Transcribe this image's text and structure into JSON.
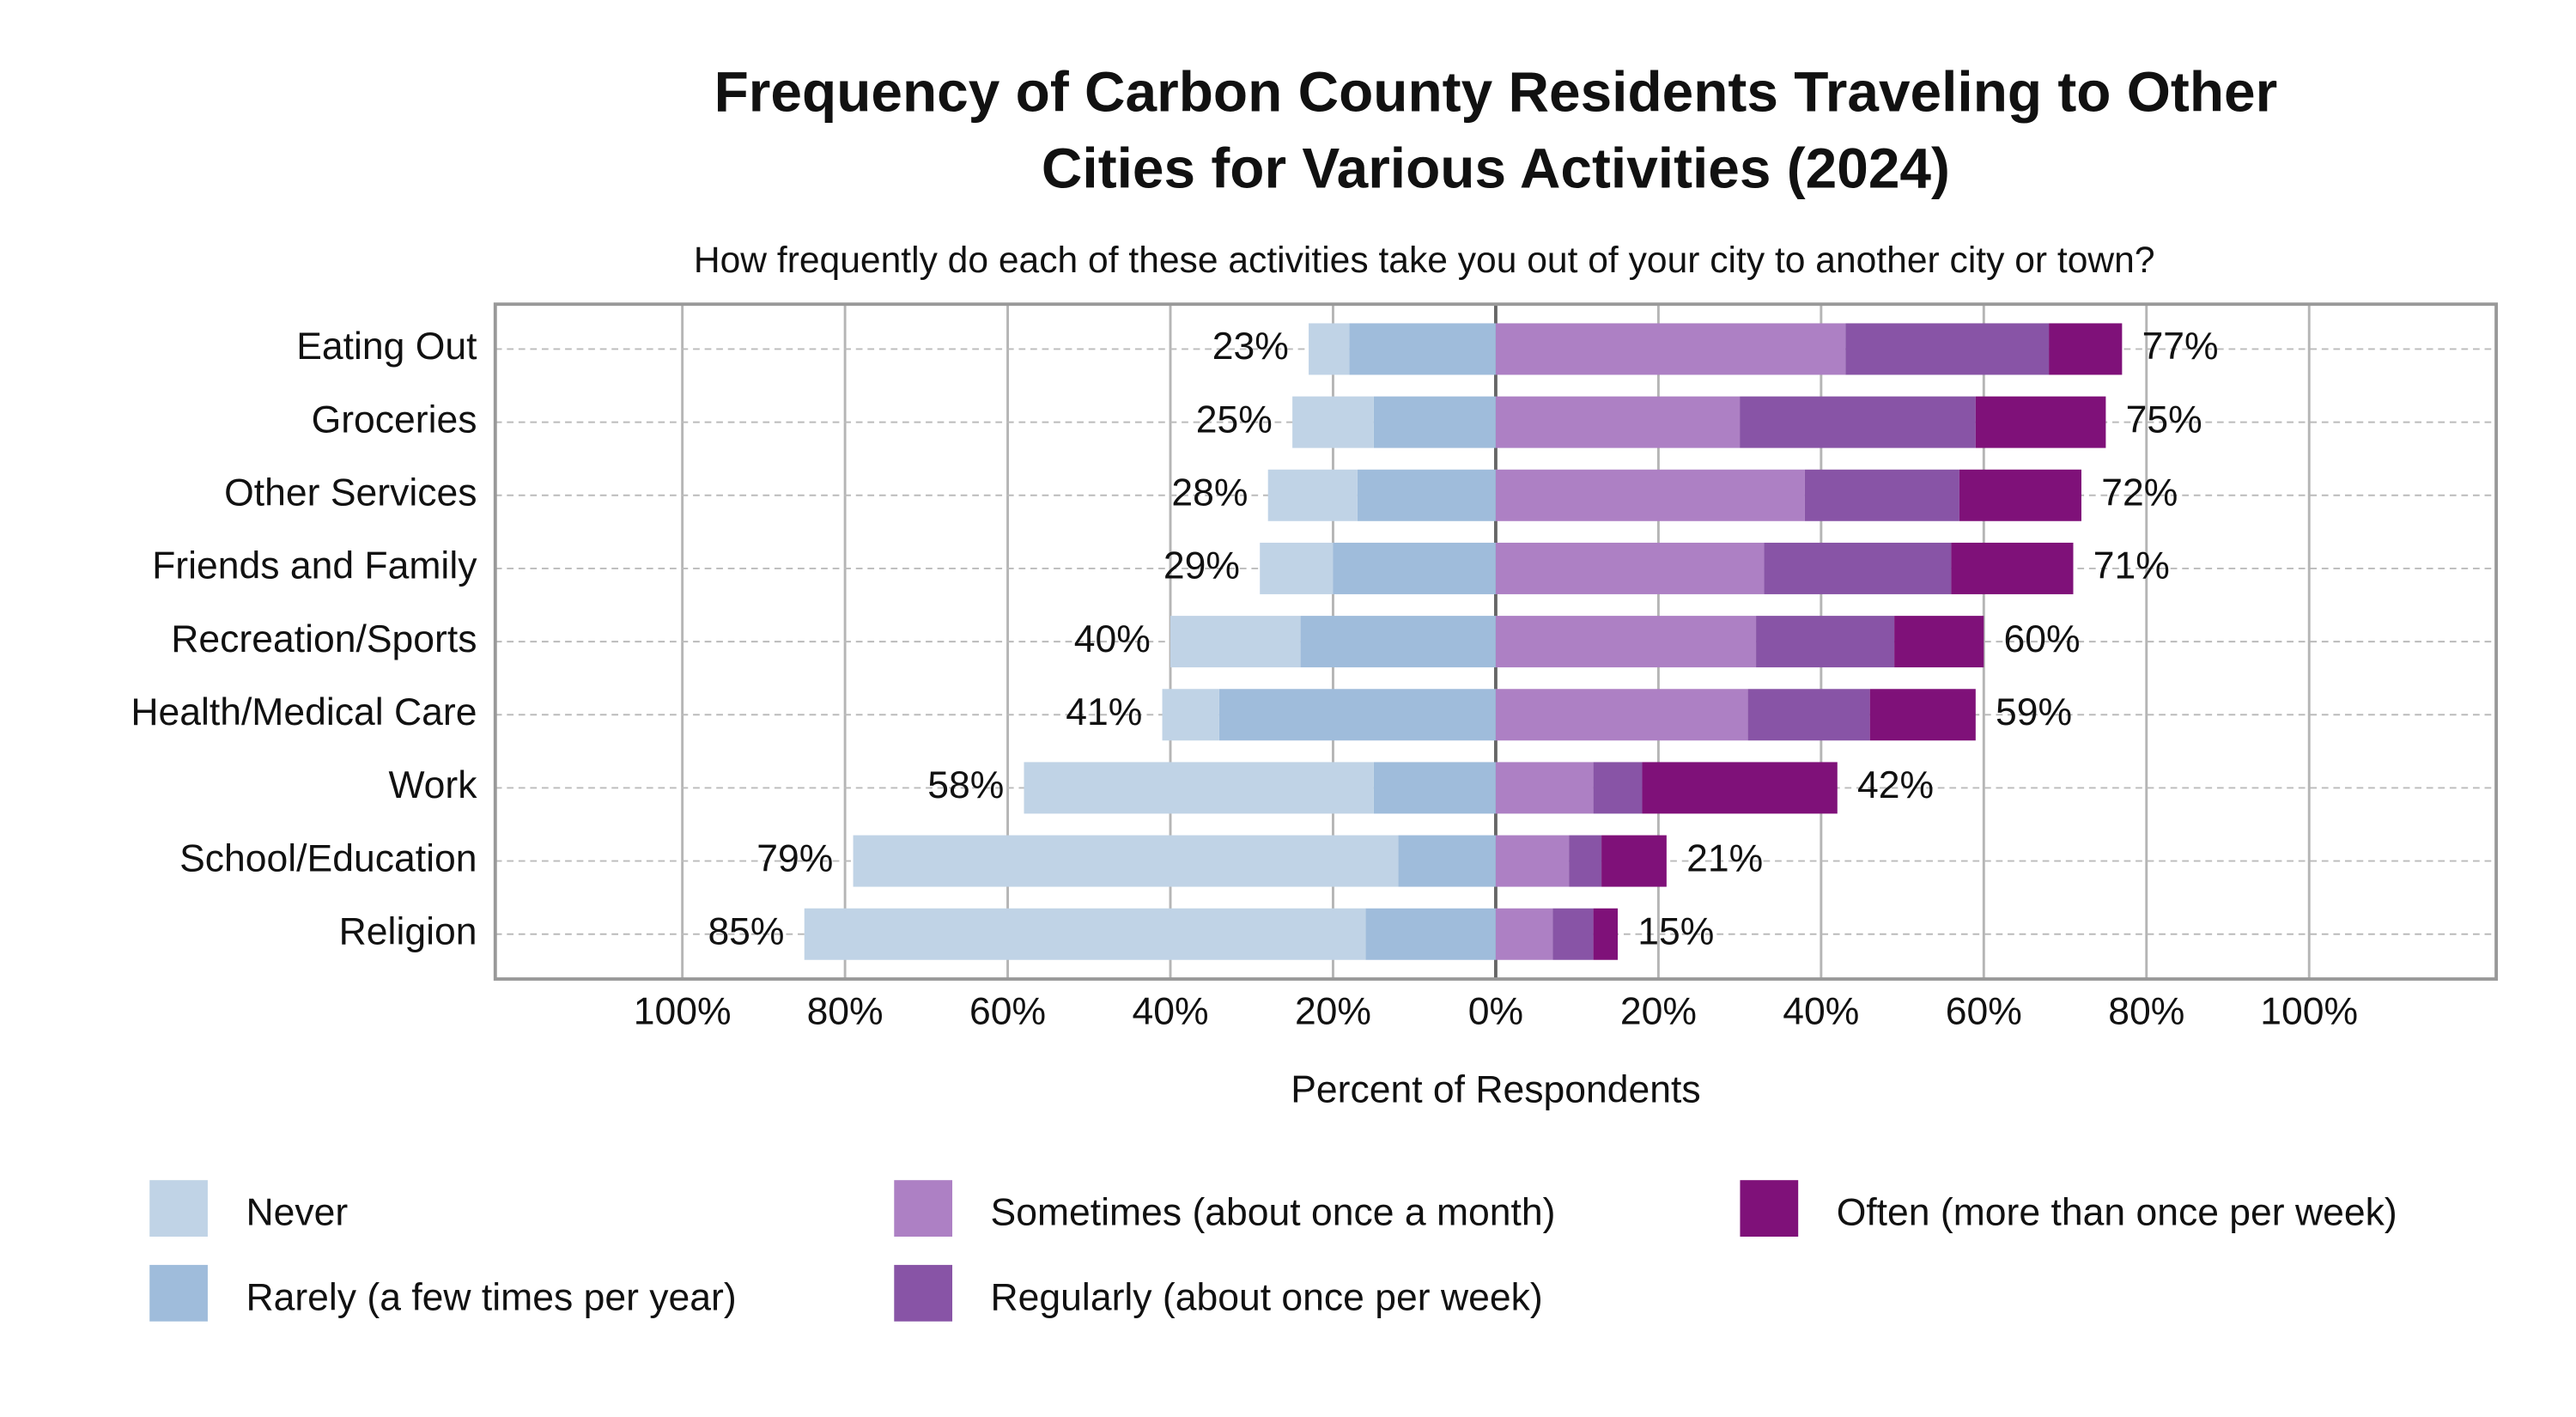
{
  "chart_data": {
    "type": "diverging-bar",
    "title": [
      "Frequency of Carbon County Residents Traveling to Other",
      "Cities for Various Activities (2024)"
    ],
    "subtitle": "How frequently do each of these activities take you out of your city to another city or town?",
    "x_label": "Percent of Respondents",
    "categories": [
      "Eating Out",
      "Groceries",
      "Other Services",
      "Friends and Family",
      "Recreation/Sports",
      "Health/Medical Care",
      "Work",
      "School/Education",
      "Religion"
    ],
    "series": [
      {
        "name": "Never",
        "color": "#c0d3e6",
        "side": "left",
        "values": [
          5,
          10,
          11,
          9,
          16,
          7,
          43,
          67,
          69
        ]
      },
      {
        "name": "Rarely (a few times per year)",
        "color": "#9fbcdb",
        "side": "left",
        "values": [
          18,
          15,
          17,
          20,
          24,
          34,
          15,
          12,
          16
        ]
      },
      {
        "name": "Sometimes (about once a month)",
        "color": "#ad80c4",
        "side": "right",
        "values": [
          43,
          30,
          38,
          33,
          32,
          31,
          12,
          9,
          7
        ]
      },
      {
        "name": "Regularly (about once per week)",
        "color": "#8854a6",
        "side": "right",
        "values": [
          25,
          29,
          19,
          23,
          17,
          15,
          6,
          4,
          5
        ]
      },
      {
        "name": "Often (more than once per week)",
        "color": "#7f1179",
        "side": "right",
        "values": [
          9,
          16,
          15,
          15,
          11,
          13,
          24,
          8,
          3
        ]
      }
    ],
    "left_totals": {
      "values": [
        23,
        25,
        28,
        29,
        40,
        41,
        58,
        79,
        85
      ],
      "value_labels": [
        "23%",
        "25%",
        "28%",
        "29%",
        "40%",
        "41%",
        "58%",
        "79%",
        "85%"
      ]
    },
    "right_totals": {
      "values": [
        77,
        75,
        72,
        71,
        60,
        59,
        42,
        21,
        15
      ],
      "value_labels": [
        "77%",
        "75%",
        "72%",
        "71%",
        "60%",
        "59%",
        "42%",
        "21%",
        "15%"
      ]
    },
    "xlim": [
      -123,
      123
    ],
    "xticks": [
      {
        "value": -100,
        "label": "100%"
      },
      {
        "value": -80,
        "label": "80%"
      },
      {
        "value": -60,
        "label": "60%"
      },
      {
        "value": -40,
        "label": "40%"
      },
      {
        "value": -20,
        "label": "20%"
      },
      {
        "value": 0,
        "label": "0%"
      },
      {
        "value": 20,
        "label": "20%"
      },
      {
        "value": 40,
        "label": "40%"
      },
      {
        "value": 60,
        "label": "60%"
      },
      {
        "value": 80,
        "label": "80%"
      },
      {
        "value": 100,
        "label": "100%"
      }
    ],
    "grid": true
  }
}
